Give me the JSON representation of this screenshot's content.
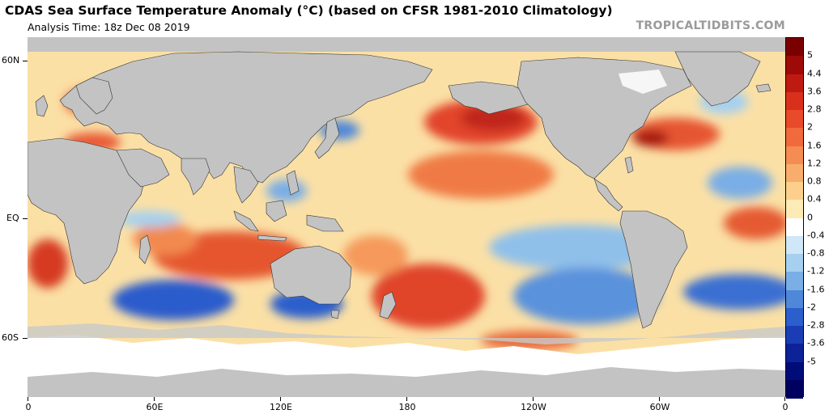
{
  "header": {
    "title": "CDAS Sea Surface Temperature Anomaly (°C) (based on CFSR 1981-2010 Climatology)",
    "subtitle": "Analysis Time: 18z Dec 08 2019",
    "credit": "TROPICALTIDBITS.COM"
  },
  "axes": {
    "y_labels": [
      "60N",
      "EQ",
      "60S"
    ],
    "x_labels": [
      "0",
      "60E",
      "120E",
      "180",
      "120W",
      "60W",
      "0"
    ]
  },
  "colorbar": {
    "labels": [
      "5",
      "4.4",
      "3.6",
      "2.8",
      "2",
      "1.6",
      "1.2",
      "0.8",
      "0.4",
      "0",
      "-0.4",
      "-0.8",
      "-1.2",
      "-1.6",
      "-2",
      "-2.8",
      "-3.6",
      "-5"
    ],
    "colors": [
      "#7a0000",
      "#9e0a08",
      "#bf1a12",
      "#d9301c",
      "#e84a2a",
      "#f06a3c",
      "#f58c52",
      "#f9ad6c",
      "#fcd08c",
      "#fdebb6",
      "#ffffff",
      "#cfe7f7",
      "#a6d0f0",
      "#7aaee6",
      "#4f88d9",
      "#2b5fcc",
      "#1a3db5",
      "#0d2296",
      "#000c78",
      "#000060"
    ]
  },
  "palette": {
    "land": "#c3c3c3",
    "ice": "#ffffff",
    "ocean_base": "#fbe7b0",
    "warm": "#e8532e",
    "warm_strong": "#c51f17",
    "cool": "#7ab2e4",
    "cool_strong": "#1f4fc4"
  }
}
